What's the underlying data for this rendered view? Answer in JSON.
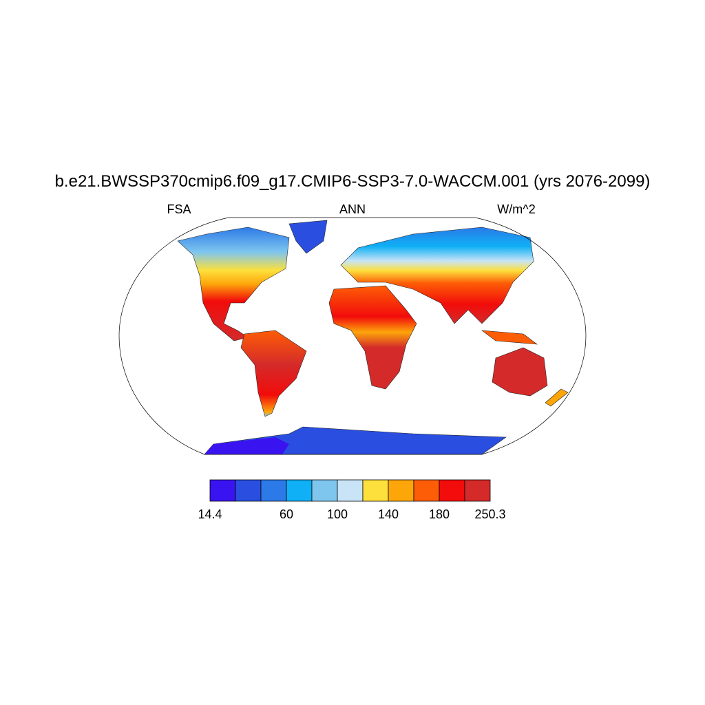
{
  "title": "b.e21.BWSSP370cmip6.f09_g17.CMIP6-SSP3-7.0-WACCM.001 (yrs 2076-2099)",
  "left_label": "FSA",
  "center_label": "ANN",
  "right_label": "W/m^2",
  "colorbar": {
    "colors": [
      "#3a14f0",
      "#2a4fe0",
      "#2b7ae8",
      "#0fb0f5",
      "#7ec6ee",
      "#c8e4f6",
      "#fde03c",
      "#fda60a",
      "#fd5d06",
      "#f20c0b",
      "#d42a2a"
    ],
    "labels": [
      "14.4",
      "60",
      "100",
      "140",
      "180",
      "250.3"
    ]
  }
}
